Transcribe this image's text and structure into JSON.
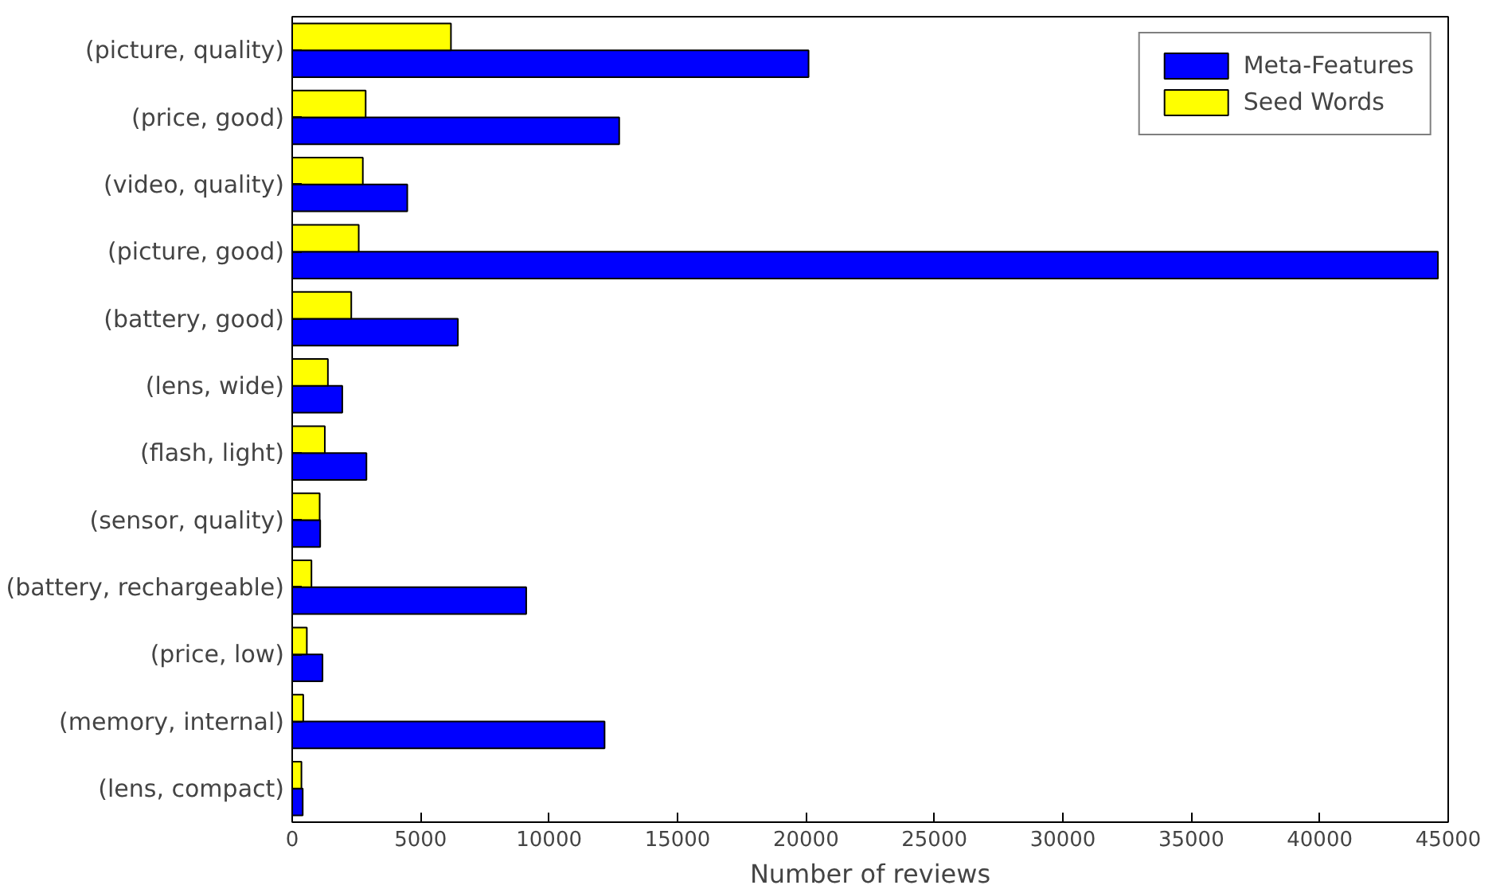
{
  "chart_data": {
    "type": "bar",
    "orientation": "horizontal",
    "xlabel": "Number of reviews",
    "categories": [
      "(picture, quality)",
      "(price, good)",
      "(video, quality)",
      "(picture, good)",
      "(battery, good)",
      "(lens, wide)",
      "(flash, light)",
      "(sensor, quality)",
      "(battery, rechargeable)",
      "(price, low)",
      "(memory, internal)",
      "(lens, compact)"
    ],
    "series": [
      {
        "name": "Meta-Features",
        "color": "#0000ff",
        "values": [
          20100,
          12730,
          4480,
          44600,
          6450,
          1950,
          2890,
          1090,
          9110,
          1180,
          12160,
          410
        ]
      },
      {
        "name": "Seed Words",
        "color": "#ffff00",
        "values": [
          6180,
          2860,
          2750,
          2590,
          2300,
          1390,
          1270,
          1070,
          750,
          570,
          430,
          360
        ]
      }
    ],
    "xlim": [
      0,
      45000
    ],
    "xticks": [
      0,
      5000,
      10000,
      15000,
      20000,
      25000,
      30000,
      35000,
      40000,
      45000
    ],
    "grid": false,
    "legend": "top right"
  }
}
